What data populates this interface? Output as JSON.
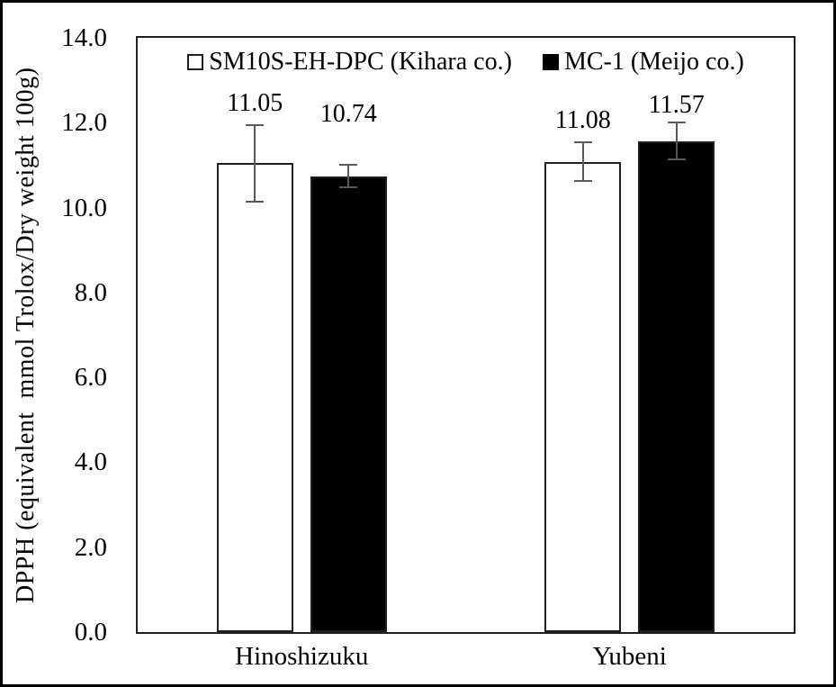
{
  "chart_data": {
    "type": "bar",
    "title": "",
    "categories": [
      "Hinoshizuku",
      "Yubeni"
    ],
    "series": [
      {
        "name": "SM10S-EH-DPC (Kihara co.)",
        "swatch": "open-square",
        "fill": "#ffffff",
        "values": [
          11.05,
          11.08
        ],
        "errors": [
          0.9,
          0.46
        ],
        "labels": [
          "11.05",
          "11.08"
        ]
      },
      {
        "name": "MC-1 (Meijo co.)",
        "swatch": "filled-square",
        "fill": "#000000",
        "values": [
          10.74,
          11.57
        ],
        "errors": [
          0.27,
          0.43
        ],
        "labels": [
          "10.74",
          "11.57"
        ]
      }
    ],
    "xlabel": "",
    "ylabel": "DPPH (equivalent  mmol Trolox/Dry weight 100g)",
    "ylim": [
      0,
      14
    ],
    "ytick_step": 2,
    "ytick_labels": [
      "0.0",
      "2.0",
      "4.0",
      "6.0",
      "8.0",
      "10.0",
      "12.0",
      "14.0"
    ],
    "legend_position": "top-center-inside",
    "grid": false,
    "error_bars": true,
    "colors": {
      "series1_fill": "#ffffff",
      "series2_fill": "#000000",
      "bar_border": "#1f1f1f",
      "plot_border": "#1f1f1f",
      "error_bar": "#595959",
      "text": "#000000",
      "background": "#ffffff",
      "outer_border": "#000000"
    }
  }
}
